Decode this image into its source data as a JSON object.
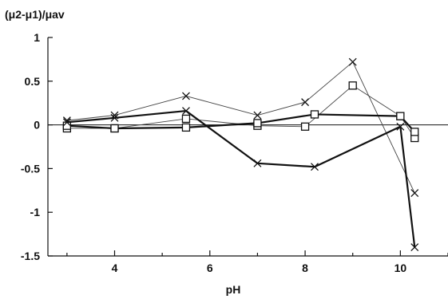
{
  "chart_data": {
    "type": "line",
    "title": "",
    "xlabel": "pH",
    "ylabel": "(μ2-μ1)/μav",
    "xlim": [
      2.6,
      11.0
    ],
    "ylim": [
      -1.5,
      1.0
    ],
    "xticks": [
      4,
      6,
      8,
      10
    ],
    "xtick_labels": [
      "4",
      "6",
      "8",
      "10"
    ],
    "yticks": [
      1,
      0.5,
      0,
      -0.5,
      -1,
      -1.5
    ],
    "ytick_labels": [
      "1",
      "0.5",
      "0",
      "-0.5",
      "-1",
      "-1.5"
    ],
    "zero_line": true,
    "grid": false,
    "legend": "none",
    "series": [
      {
        "marker": "x",
        "line_weight": "thin",
        "color": "#444444",
        "x": [
          3.0,
          4.0,
          5.5,
          7.0,
          8.0,
          9.0,
          10.3
        ],
        "y": [
          0.05,
          0.11,
          0.33,
          0.11,
          0.26,
          0.72,
          -0.78
        ]
      },
      {
        "marker": "square",
        "line_weight": "thin",
        "color": "#444444",
        "x": [
          3.0,
          4.0,
          5.5,
          7.0,
          8.0,
          9.0,
          10.0,
          10.3
        ],
        "y": [
          -0.04,
          -0.04,
          0.07,
          -0.01,
          -0.02,
          0.45,
          0.1,
          -0.15
        ]
      },
      {
        "marker": "square",
        "line_weight": "thick",
        "color": "#111111",
        "x": [
          3.0,
          4.0,
          5.5,
          7.0,
          8.2,
          10.0,
          10.3
        ],
        "y": [
          -0.01,
          -0.04,
          -0.03,
          0.02,
          0.12,
          0.1,
          -0.08
        ]
      },
      {
        "marker": "x",
        "line_weight": "thick",
        "color": "#111111",
        "x": [
          3.0,
          4.0,
          5.5,
          7.0,
          8.2,
          10.0,
          10.3
        ],
        "y": [
          0.03,
          0.08,
          0.16,
          -0.44,
          -0.48,
          -0.02,
          -1.4
        ]
      }
    ]
  }
}
